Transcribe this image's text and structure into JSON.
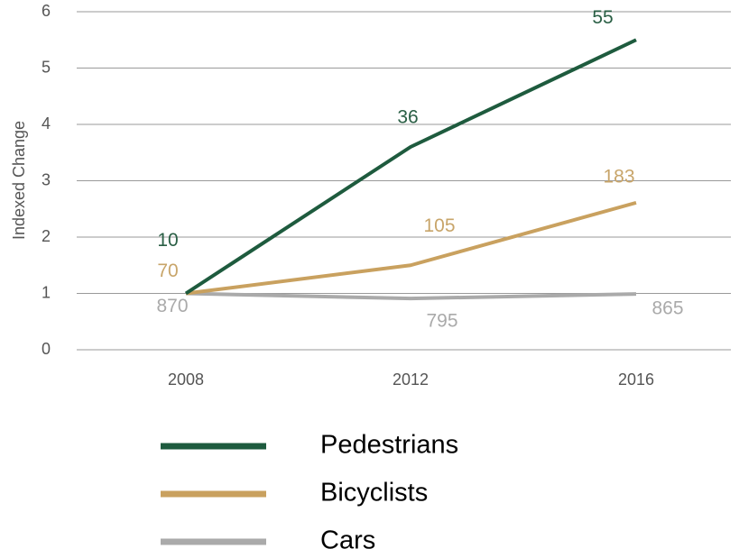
{
  "chart_data": {
    "type": "line",
    "y_label": "Indexed Change",
    "categories": [
      "2008",
      "2012",
      "2016"
    ],
    "series": [
      {
        "name": "Pedestrians",
        "color": "#1e5b3e",
        "label_color": "#2a5f45",
        "values": [
          1,
          3.6,
          5.5
        ],
        "counts": [
          10,
          36,
          55
        ]
      },
      {
        "name": "Bicyclists",
        "color": "#c9a15f",
        "label_color": "#c8a56a",
        "values": [
          1,
          1.5,
          2.61
        ],
        "counts": [
          70,
          105,
          183
        ]
      },
      {
        "name": "Cars",
        "color": "#aaaaaa",
        "label_color": "#aaaaaa",
        "values": [
          1,
          0.91,
          0.99
        ],
        "counts": [
          870,
          795,
          865
        ]
      }
    ],
    "ylim": [
      0,
      6
    ],
    "yticks": [
      0,
      1,
      2,
      3,
      4,
      5,
      6
    ],
    "grid": true
  }
}
